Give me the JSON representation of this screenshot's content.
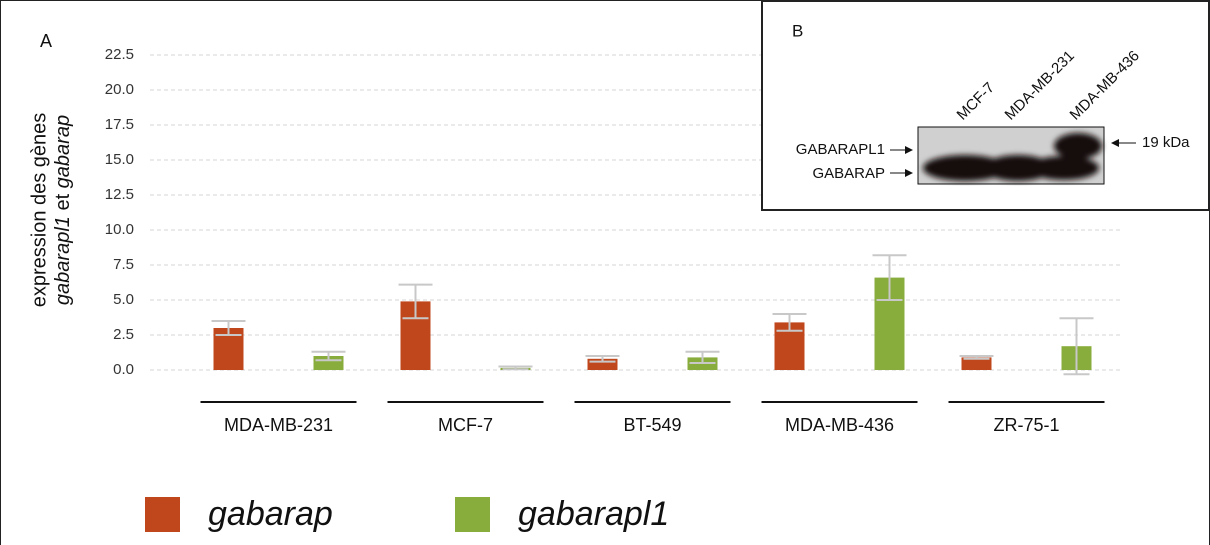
{
  "chart_data": {
    "type": "bar",
    "panel_label": "A",
    "y_label": {
      "line1": "expression des gènes",
      "line2": [
        "gabarapl1",
        " et ",
        "gabarap"
      ]
    },
    "categories": [
      "MDA-MB-231",
      "MCF-7",
      "BT-549",
      "MDA-MB-436",
      "ZR-75-1"
    ],
    "series": [
      {
        "name": "gabarap",
        "color": "#c0471c",
        "values": [
          3.0,
          4.9,
          0.8,
          3.4,
          0.9
        ],
        "errors": [
          0.5,
          1.2,
          0.2,
          0.6,
          0.1
        ]
      },
      {
        "name": "gabarapl1",
        "color": "#88ad3c",
        "values": [
          1.0,
          0.15,
          0.9,
          6.6,
          1.7
        ],
        "errors": [
          0.3,
          0.1,
          0.4,
          1.6,
          2.0
        ]
      }
    ],
    "ylim": [
      0,
      22.5
    ],
    "yticks": [
      {
        "value": 0,
        "label": "0.0"
      },
      2.5,
      {
        "value": 5,
        "label": "5.0"
      },
      7.5,
      {
        "value": 10,
        "label": "10.0"
      },
      12.5,
      {
        "value": 15,
        "label": "15.0"
      },
      17.5,
      {
        "value": 20,
        "label": "20.0"
      },
      22.5
    ],
    "grid": true
  },
  "inset": {
    "panel_label": "B",
    "lanes": [
      "MCF-7",
      "MDA-MB-231",
      "MDA-MB-436"
    ],
    "bands": [
      "GABARAPL1",
      "GABARAP"
    ],
    "marker": "19 kDa"
  }
}
